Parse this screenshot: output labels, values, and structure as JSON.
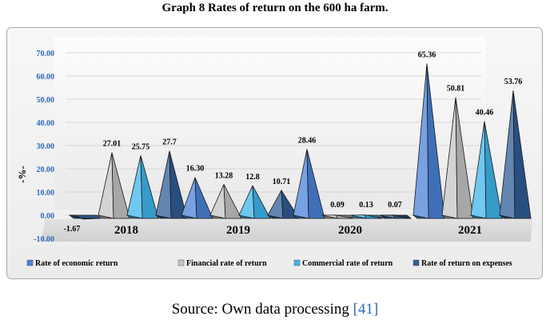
{
  "chart_data": {
    "type": "bar",
    "style": "3d-cone",
    "title": "Graph 8 Rates of return on the 600 ha farm.",
    "ylabel": "-%-",
    "xlabel": "",
    "ylim": [
      -10,
      70
    ],
    "yticks": [
      "70.00",
      "60.00",
      "50.00",
      "40.00",
      "30.00",
      "20.00",
      "10.00",
      "0.00",
      "-10.00"
    ],
    "ytick_values": [
      70,
      60,
      50,
      40,
      30,
      20,
      10,
      0,
      -10
    ],
    "categories": [
      "2018",
      "2019",
      "2020",
      "2021"
    ],
    "series": [
      {
        "name": "Rate of economic return",
        "color": "#4a82d8",
        "values": [
          -1.67,
          16.3,
          28.46,
          65.36
        ],
        "labels": [
          "-1.67",
          "16.30",
          "28.46",
          "65.36"
        ]
      },
      {
        "name": "Financial rate of return",
        "color": "#c4c4c4",
        "values": [
          27.01,
          13.28,
          0.09,
          50.81
        ],
        "labels": [
          "27.01",
          "13.28",
          "0.09",
          "50.81"
        ]
      },
      {
        "name": "Commercial rate of return",
        "color": "#3fb6ec",
        "values": [
          25.75,
          12.8,
          0.13,
          40.46
        ],
        "labels": [
          "25.75",
          "12.8",
          "0.13",
          "40.46"
        ]
      },
      {
        "name": "Rate of return on expenses",
        "color": "#2f5d96",
        "values": [
          27.7,
          10.71,
          0.07,
          53.76
        ],
        "labels": [
          "27.7",
          "10.71",
          "0.07",
          "53.76"
        ]
      }
    ],
    "legend_position": "bottom"
  },
  "source": {
    "text": "Source: Own data processing",
    "ref": "[41]"
  }
}
